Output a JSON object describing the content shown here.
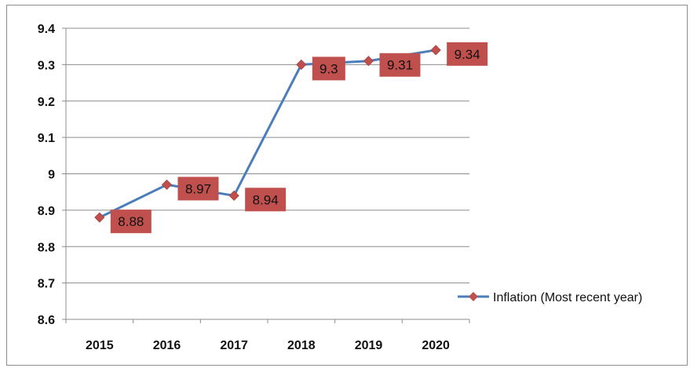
{
  "chart_data": {
    "type": "line",
    "title": "",
    "xlabel": "",
    "ylabel": "",
    "categories": [
      "2015",
      "2016",
      "2017",
      "2018",
      "2019",
      "2020"
    ],
    "series": [
      {
        "name": "Inflation (Most recent year)",
        "values": [
          8.88,
          8.97,
          8.94,
          9.3,
          9.31,
          9.34
        ],
        "data_labels": [
          "8.88",
          "8.97",
          "8.94",
          "9.3",
          "9.31",
          "9.34"
        ]
      }
    ],
    "ylim": [
      8.6,
      9.4
    ],
    "yticks": [
      "8.6",
      "8.7",
      "8.8",
      "8.9",
      "9",
      "9.1",
      "9.2",
      "9.3",
      "9.4"
    ],
    "grid": "horizontal",
    "legend": "right",
    "colors": {
      "line": "#4a7ebb",
      "marker": "#c0504d",
      "label_box": "#c0504d",
      "gridline": "#8c8c8c"
    }
  }
}
